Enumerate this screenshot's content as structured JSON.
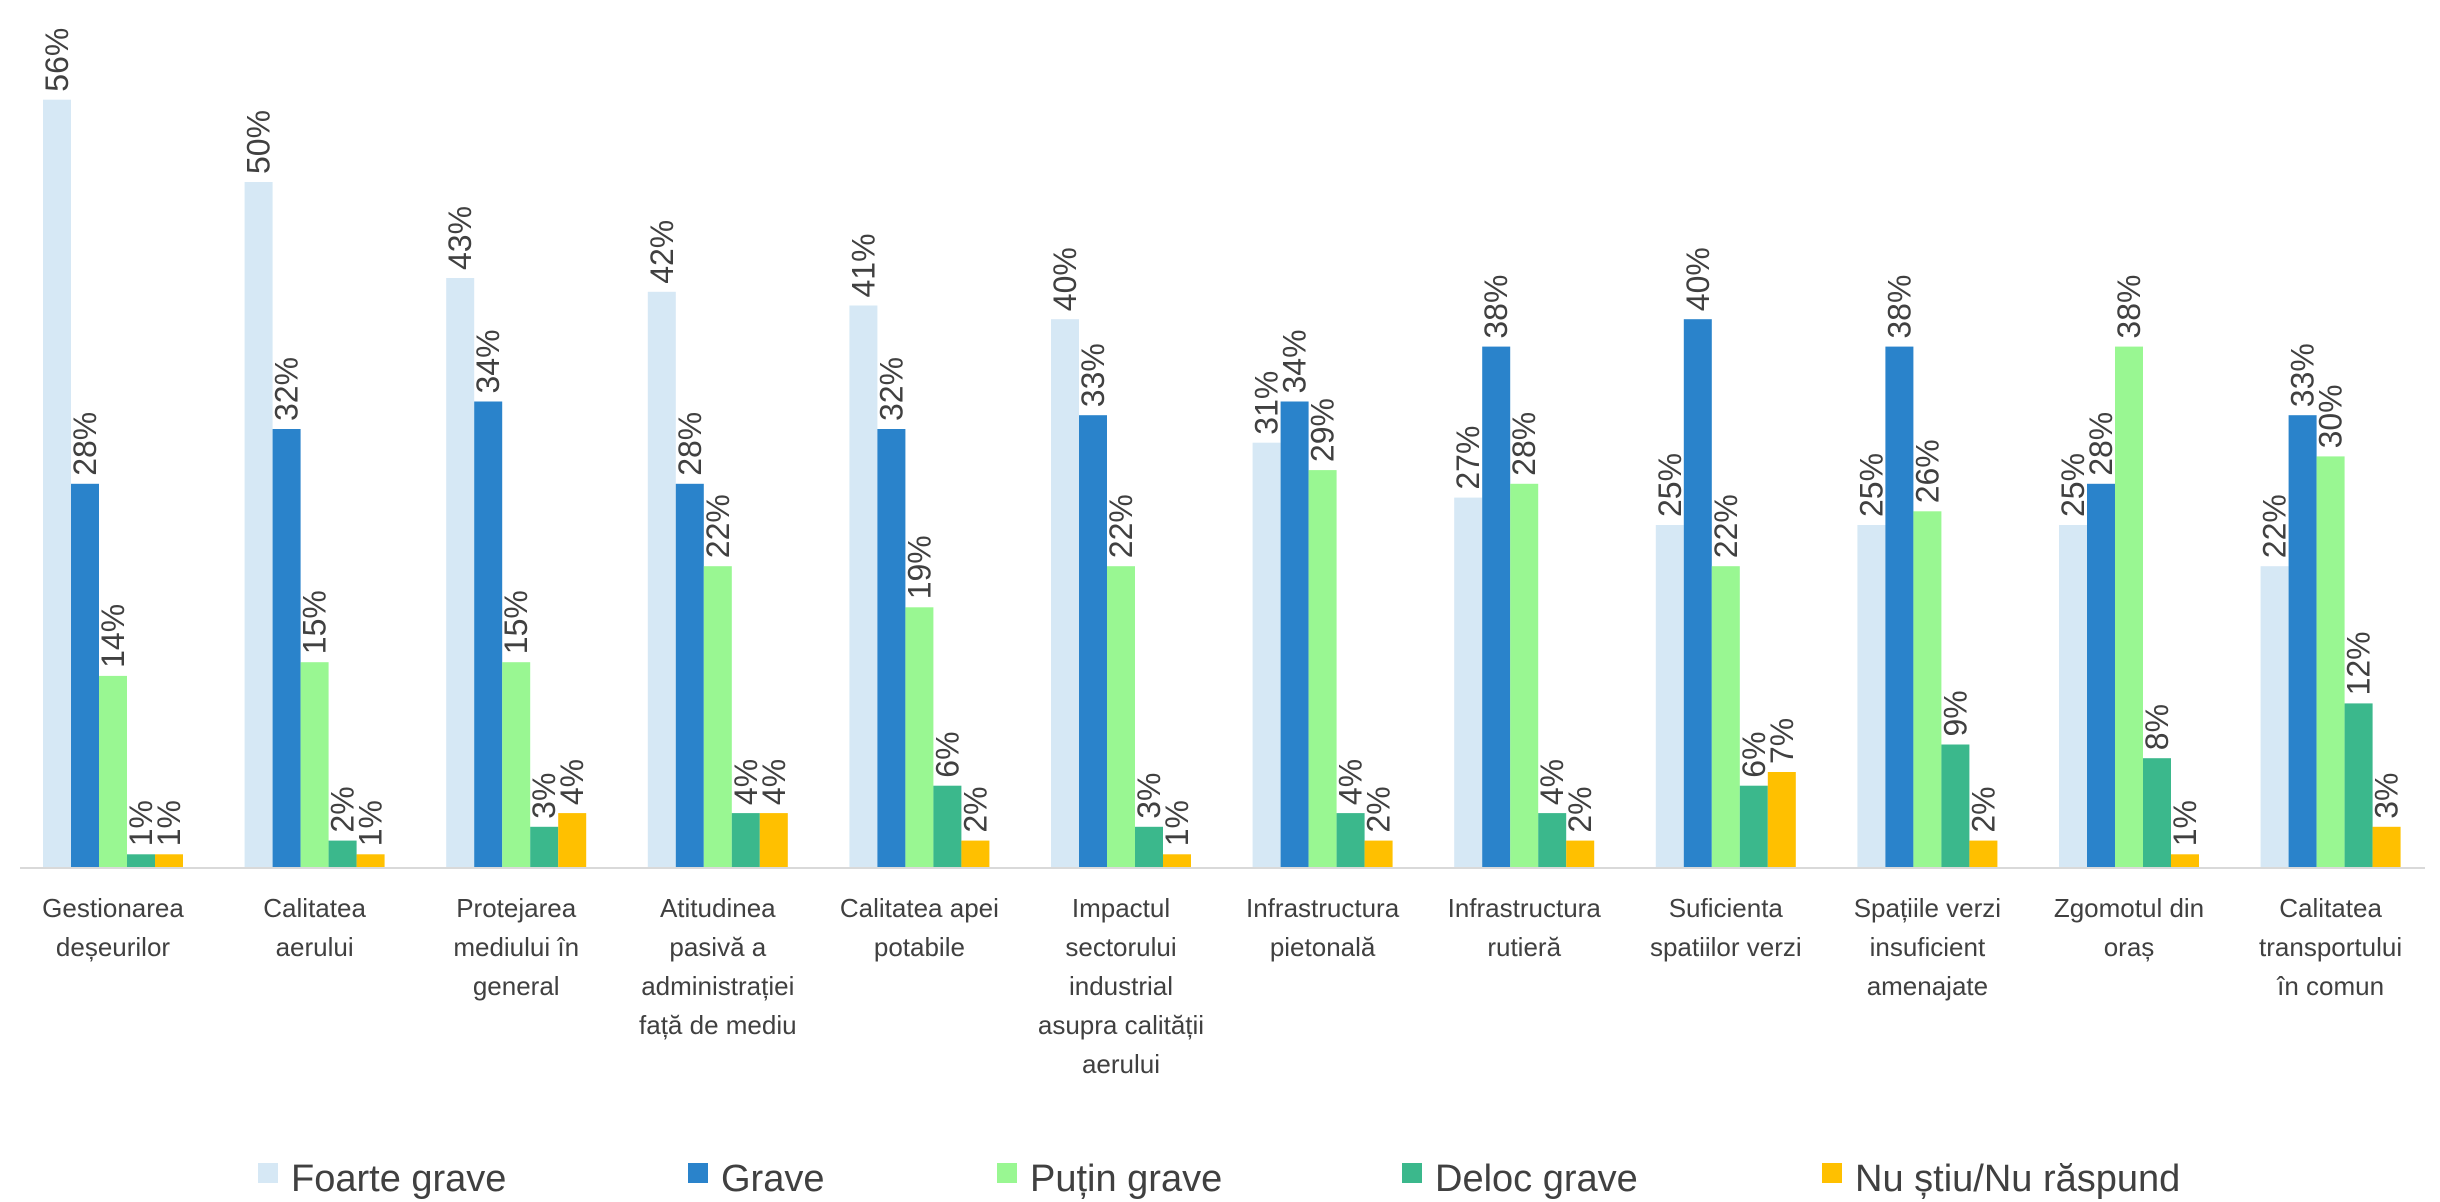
{
  "chart_data": {
    "type": "bar",
    "title": "",
    "xlabel": "",
    "ylabel": "",
    "ylim": [
      0,
      60
    ],
    "grid": false,
    "legend_position": "bottom",
    "categories": [
      [
        "Gestionarea",
        "deșeurilor"
      ],
      [
        "Calitatea",
        "aerului"
      ],
      [
        "Protejarea",
        "mediului în",
        "general"
      ],
      [
        "Atitudinea",
        "pasivă a",
        "administrației",
        "față de mediu"
      ],
      [
        "Calitatea apei",
        "potabile"
      ],
      [
        "Impactul",
        "sectorului",
        "industrial",
        "asupra calității",
        "aerului"
      ],
      [
        "Infrastructura",
        "pietonală"
      ],
      [
        "Infrastructura",
        "rutieră"
      ],
      [
        "Suficienta",
        "spatiilor verzi"
      ],
      [
        "Spațiile verzi",
        "insuficient",
        "amenajate"
      ],
      [
        "Zgomotul din",
        "oraș"
      ],
      [
        "Calitatea",
        "transportului",
        "în comun"
      ]
    ],
    "series": [
      {
        "name": "Foarte grave",
        "color": "#d6e8f5",
        "values": [
          56,
          50,
          43,
          42,
          41,
          40,
          31,
          27,
          25,
          25,
          25,
          22
        ]
      },
      {
        "name": "Grave",
        "color": "#2a83cb",
        "values": [
          28,
          32,
          34,
          28,
          32,
          33,
          34,
          38,
          40,
          38,
          28,
          33
        ]
      },
      {
        "name": "Puțin grave",
        "color": "#99f792",
        "values": [
          14,
          15,
          15,
          22,
          19,
          22,
          29,
          28,
          22,
          26,
          38,
          30
        ]
      },
      {
        "name": "Deloc grave",
        "color": "#3bb88c",
        "values": [
          1,
          2,
          3,
          4,
          6,
          3,
          4,
          4,
          6,
          9,
          8,
          12
        ]
      },
      {
        "name": "Nu știu/Nu răspund",
        "color": "#ffc000",
        "values": [
          1,
          1,
          4,
          4,
          2,
          1,
          2,
          2,
          7,
          2,
          1,
          3
        ]
      }
    ],
    "value_suffix": "%"
  }
}
